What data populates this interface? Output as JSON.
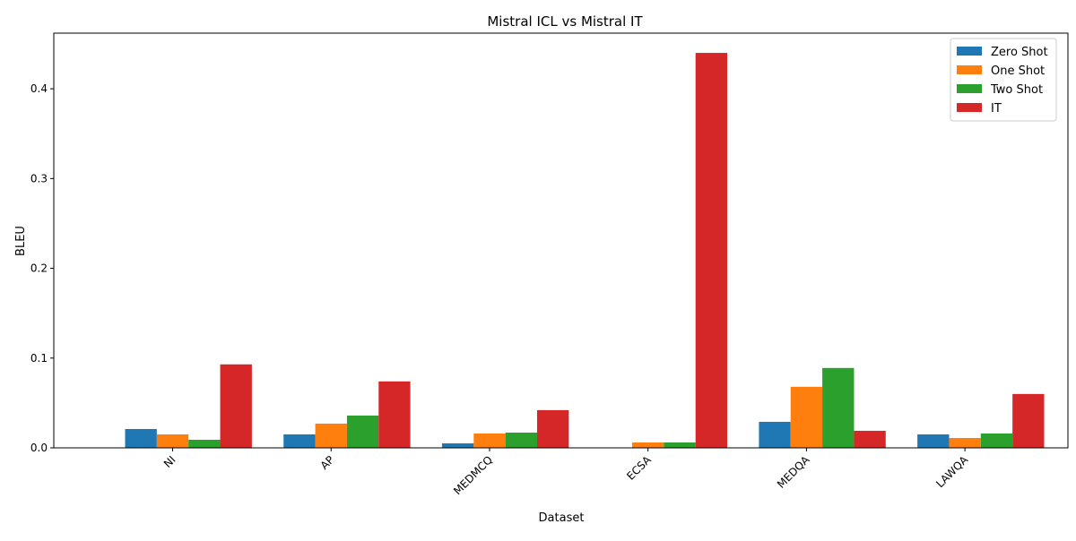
{
  "chart_data": {
    "type": "bar",
    "title": "Mistral ICL vs Mistral IT",
    "xlabel": "Dataset",
    "ylabel": "BLEU",
    "categories": [
      "NI",
      "AP",
      "MEDMCQ",
      "ECSA",
      "MEDQA",
      "LAWQA"
    ],
    "series": [
      {
        "name": "Zero Shot",
        "color": "#1f77b4",
        "values": [
          0.021,
          0.015,
          0.005,
          0.0,
          0.029,
          0.015
        ]
      },
      {
        "name": "One Shot",
        "color": "#ff7f0e",
        "values": [
          0.015,
          0.027,
          0.016,
          0.006,
          0.068,
          0.011
        ]
      },
      {
        "name": "Two Shot",
        "color": "#2ca02c",
        "values": [
          0.009,
          0.036,
          0.017,
          0.006,
          0.089,
          0.016
        ]
      },
      {
        "name": "IT",
        "color": "#d62728",
        "values": [
          0.093,
          0.074,
          0.042,
          0.44,
          0.019,
          0.06
        ]
      }
    ],
    "y_ticks": [
      0.0,
      0.1,
      0.2,
      0.3,
      0.4
    ],
    "y_tick_labels": [
      "0.0",
      "0.1",
      "0.2",
      "0.3",
      "0.4"
    ],
    "ylim": [
      0,
      0.462
    ],
    "grid": false,
    "legend_position": "top-right",
    "x_tick_rotation_deg": 45
  }
}
